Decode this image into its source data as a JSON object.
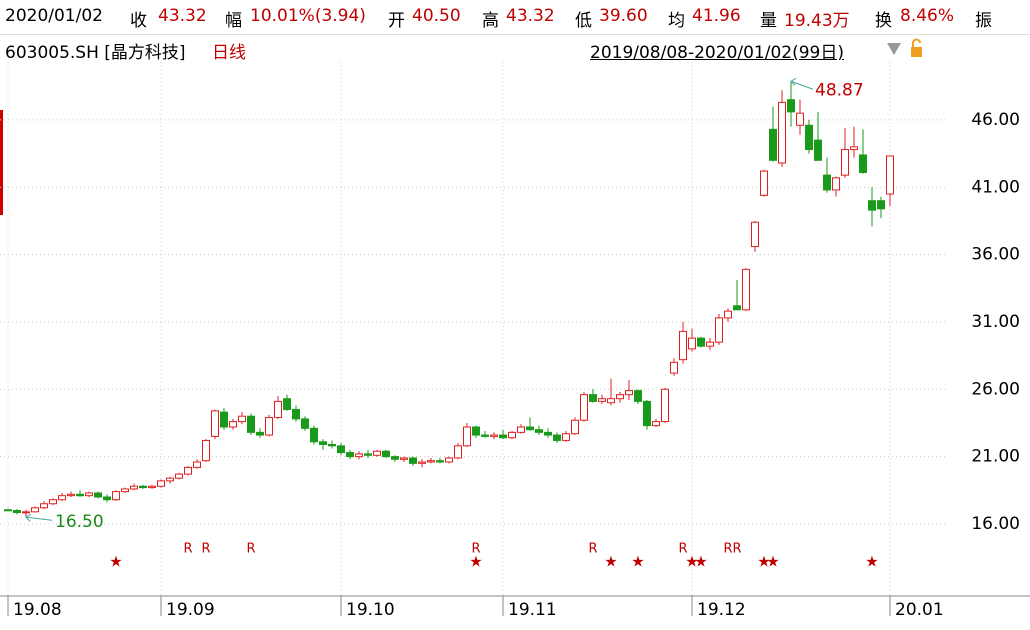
{
  "header": {
    "date": "2020/01/02",
    "fields": [
      {
        "label": "收",
        "value": "43.32"
      },
      {
        "label": "幅",
        "value": "10.01%(3.94)"
      },
      {
        "label": "开",
        "value": "40.50"
      },
      {
        "label": "高",
        "value": "43.32"
      },
      {
        "label": "低",
        "value": "39.60"
      },
      {
        "label": "均",
        "value": "41.96"
      },
      {
        "label": "量",
        "value": "19.43万"
      },
      {
        "label": "换",
        "value": "8.46%"
      },
      {
        "label": "振",
        "value": ""
      }
    ],
    "symbol": "603005.SH [晶方科技]",
    "period": "日线",
    "range": "2019/08/08-2020/01/02(99日)"
  },
  "chart_data": {
    "type": "candlestick",
    "categories": [
      "19.08",
      null,
      null,
      null,
      null,
      null,
      null,
      null,
      null,
      null,
      null,
      null,
      null,
      null,
      null,
      null,
      null,
      "19.09",
      null,
      null,
      null,
      null,
      null,
      null,
      null,
      null,
      null,
      null,
      null,
      null,
      null,
      null,
      null,
      null,
      null,
      null,
      null,
      "19.10",
      null,
      null,
      null,
      null,
      null,
      null,
      null,
      null,
      null,
      null,
      null,
      null,
      null,
      null,
      null,
      null,
      null,
      "19.11",
      null,
      null,
      null,
      null,
      null,
      null,
      null,
      null,
      null,
      null,
      null,
      null,
      null,
      null,
      null,
      null,
      null,
      null,
      null,
      null,
      "19.12",
      null,
      null,
      null,
      null,
      null,
      null,
      null,
      null,
      null,
      null,
      null,
      null,
      null,
      null,
      null,
      null,
      null,
      null,
      null,
      null,
      null,
      "20.01"
    ],
    "open": [
      17.05,
      17.0,
      16.85,
      16.9,
      17.2,
      17.5,
      17.8,
      18.1,
      18.2,
      18.1,
      18.3,
      18.0,
      17.8,
      18.4,
      18.6,
      18.8,
      18.7,
      18.8,
      19.2,
      19.4,
      19.7,
      20.2,
      20.7,
      22.5,
      24.3,
      23.2,
      23.6,
      24.0,
      22.8,
      22.6,
      23.9,
      25.3,
      24.5,
      23.8,
      23.1,
      22.1,
      21.9,
      21.8,
      21.3,
      21.0,
      21.2,
      21.1,
      21.4,
      21.0,
      20.8,
      20.9,
      20.5,
      20.6,
      20.7,
      20.6,
      20.9,
      21.8,
      23.2,
      22.6,
      22.5,
      22.6,
      22.4,
      22.8,
      23.2,
      23.0,
      22.8,
      22.6,
      22.2,
      22.7,
      23.7,
      25.6,
      25.1,
      25.0,
      25.3,
      25.6,
      25.9,
      25.1,
      23.3,
      23.6,
      27.2,
      28.2,
      29.0,
      29.8,
      29.2,
      29.5,
      31.3,
      32.2,
      31.9,
      36.6,
      40.4,
      45.3,
      42.8,
      47.5,
      45.6,
      45.6,
      44.5,
      41.9,
      40.8,
      41.9,
      43.8,
      43.4,
      40.0,
      40.0,
      40.5
    ],
    "high": [
      17.15,
      17.1,
      17.05,
      17.3,
      17.7,
      17.9,
      18.3,
      18.4,
      18.5,
      18.4,
      18.4,
      18.2,
      18.5,
      18.7,
      19.0,
      18.9,
      18.9,
      19.3,
      19.5,
      19.8,
      20.3,
      20.8,
      22.3,
      24.5,
      24.6,
      23.8,
      24.3,
      24.2,
      23.1,
      24.1,
      25.5,
      25.6,
      24.8,
      24.0,
      23.3,
      22.3,
      22.2,
      22.0,
      21.5,
      21.4,
      21.5,
      21.5,
      21.5,
      21.1,
      21.0,
      21.0,
      20.8,
      20.9,
      20.9,
      21.0,
      22.0,
      23.5,
      23.3,
      22.9,
      22.8,
      23.0,
      22.9,
      23.4,
      23.9,
      23.3,
      23.1,
      22.8,
      22.9,
      23.9,
      25.8,
      26.0,
      25.6,
      26.8,
      25.8,
      26.7,
      26.0,
      25.2,
      23.8,
      26.1,
      28.3,
      31.0,
      30.5,
      29.9,
      29.8,
      31.6,
      32.0,
      34.1,
      35.0,
      38.5,
      42.3,
      47.0,
      48.2,
      48.87,
      47.5,
      46.0,
      46.6,
      43.2,
      41.8,
      45.4,
      45.5,
      45.3,
      41.0,
      40.3,
      43.32
    ],
    "low": [
      16.95,
      16.7,
      16.5,
      16.85,
      17.1,
      17.4,
      17.7,
      18.0,
      18.0,
      18.0,
      17.9,
      17.6,
      17.7,
      18.3,
      18.5,
      18.6,
      18.6,
      18.7,
      19.0,
      19.3,
      19.6,
      20.1,
      20.6,
      22.3,
      23.0,
      23.0,
      23.4,
      22.6,
      22.4,
      22.5,
      23.8,
      24.4,
      23.6,
      22.9,
      21.9,
      21.5,
      21.6,
      21.1,
      20.8,
      20.8,
      20.9,
      21.0,
      20.9,
      20.6,
      20.6,
      20.3,
      20.2,
      20.5,
      20.5,
      20.5,
      20.8,
      21.7,
      22.4,
      22.4,
      22.3,
      22.3,
      22.3,
      22.7,
      22.9,
      22.6,
      22.4,
      22.0,
      22.1,
      22.6,
      23.6,
      25.0,
      24.9,
      24.8,
      25.0,
      25.2,
      24.9,
      23.0,
      23.2,
      23.5,
      27.0,
      27.9,
      28.8,
      29.1,
      28.9,
      29.3,
      31.0,
      31.9,
      31.8,
      36.2,
      40.3,
      42.9,
      42.5,
      45.5,
      44.9,
      43.5,
      43.0,
      40.6,
      40.3,
      41.7,
      43.2,
      42.0,
      38.1,
      38.7,
      39.6
    ],
    "close": [
      17.0,
      16.85,
      16.9,
      17.2,
      17.5,
      17.8,
      18.1,
      18.2,
      18.1,
      18.3,
      18.0,
      17.8,
      18.4,
      18.6,
      18.8,
      18.7,
      18.8,
      19.2,
      19.4,
      19.7,
      20.2,
      20.6,
      22.2,
      24.4,
      23.2,
      23.6,
      24.0,
      22.8,
      22.6,
      23.9,
      25.1,
      24.5,
      23.8,
      23.1,
      22.1,
      21.9,
      21.8,
      21.3,
      21.0,
      21.2,
      21.1,
      21.4,
      21.0,
      20.8,
      20.9,
      20.5,
      20.6,
      20.7,
      20.6,
      20.9,
      21.8,
      23.2,
      22.6,
      22.5,
      22.6,
      22.4,
      22.8,
      23.2,
      23.0,
      22.8,
      22.6,
      22.2,
      22.7,
      23.7,
      25.6,
      25.1,
      25.3,
      25.3,
      25.6,
      25.9,
      25.1,
      23.3,
      23.6,
      26.0,
      28.0,
      30.3,
      29.8,
      29.2,
      29.5,
      31.3,
      31.8,
      31.9,
      34.9,
      38.4,
      42.2,
      43.0,
      47.3,
      46.6,
      46.5,
      43.8,
      43.0,
      40.8,
      41.7,
      43.8,
      44.0,
      42.1,
      39.3,
      39.4,
      43.32
    ],
    "up_color": "#e02020",
    "down_color": "#1a9a1a",
    "ylim": [
      10.65,
      50.3
    ],
    "yticks": [
      {
        "value": 16,
        "label": "16.00"
      },
      {
        "value": 21,
        "label": "21.00"
      },
      {
        "value": 26,
        "label": "26.00"
      },
      {
        "value": 31,
        "label": "31.00"
      },
      {
        "value": 36,
        "label": "36.00"
      },
      {
        "value": 41,
        "label": "41.00"
      },
      {
        "value": 46,
        "label": "46.00"
      }
    ],
    "grid": true,
    "high_label": {
      "index": 87,
      "label": "48.87",
      "color": "#c00000"
    },
    "low_label": {
      "index": 2,
      "label": "16.50",
      "color": "#1a8a1a"
    },
    "signals": [
      {
        "label": "R",
        "indices": [
          20,
          22,
          27,
          52,
          65,
          75,
          80,
          81
        ],
        "color": "#c00000"
      },
      {
        "label": "★",
        "indices": [
          12,
          52,
          67,
          70,
          76,
          77,
          84,
          85,
          96
        ],
        "color": "#c00000"
      }
    ]
  }
}
